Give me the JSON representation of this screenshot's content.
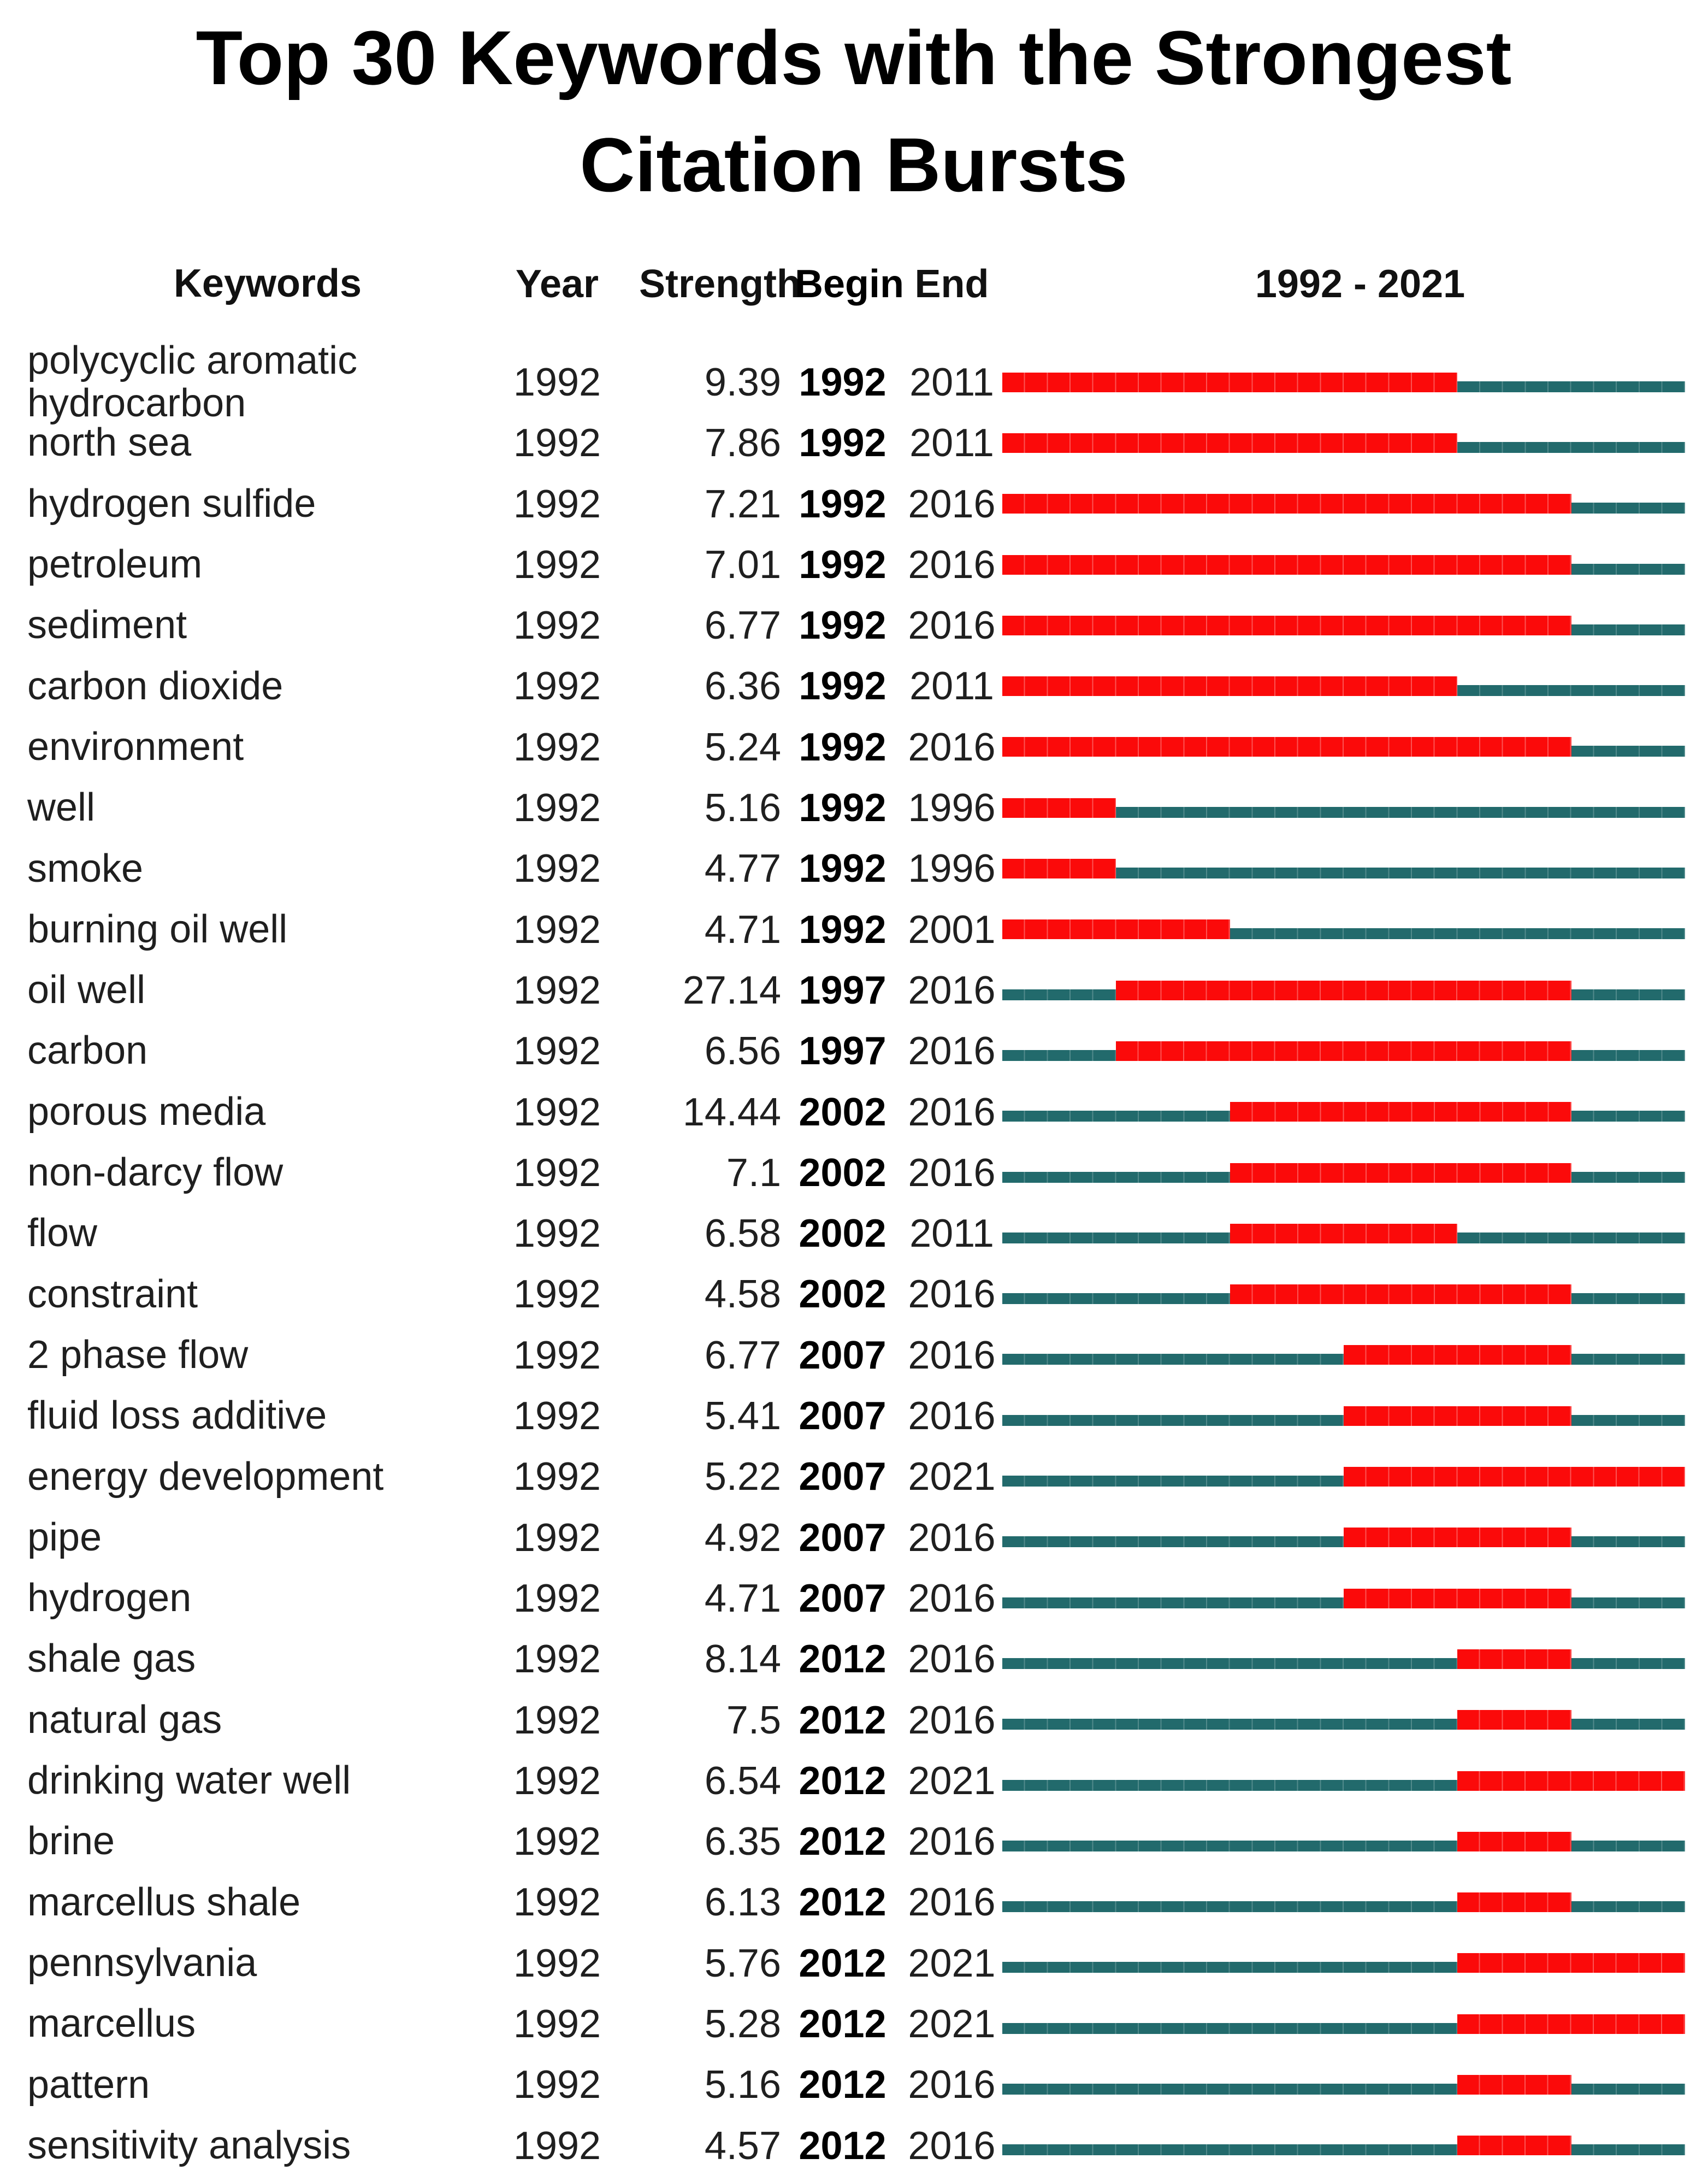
{
  "title": "Top 30 Keywords with the Strongest Citation Bursts",
  "headers": {
    "keywords": "Keywords",
    "year": "Year",
    "strength": "Strength",
    "begin": "Begin",
    "end": "End",
    "range": "1992 - 2021"
  },
  "colors": {
    "burst": "#fb0a0a",
    "track": "#226a6c",
    "text": "#1f1f1f",
    "title": "#000000"
  },
  "chart_data": {
    "type": "table",
    "title": "Top 30 Keywords with the Strongest Citation Bursts",
    "timeline": {
      "start": 1992,
      "end": 2021,
      "label": "1992 - 2021"
    },
    "columns": [
      "Keywords",
      "Year",
      "Strength",
      "Begin",
      "End"
    ],
    "legend": {
      "burst_segment": "burst period (red)",
      "track_segment": "non-burst timeline (teal)"
    },
    "rows": [
      {
        "keyword": "polycyclic aromatic hydrocarbon",
        "year": "1992",
        "strength": "9.39",
        "begin": 1992,
        "end": 2011
      },
      {
        "keyword": "north sea",
        "year": "1992",
        "strength": "7.86",
        "begin": 1992,
        "end": 2011
      },
      {
        "keyword": "hydrogen sulfide",
        "year": "1992",
        "strength": "7.21",
        "begin": 1992,
        "end": 2016
      },
      {
        "keyword": "petroleum",
        "year": "1992",
        "strength": "7.01",
        "begin": 1992,
        "end": 2016
      },
      {
        "keyword": "sediment",
        "year": "1992",
        "strength": "6.77",
        "begin": 1992,
        "end": 2016
      },
      {
        "keyword": "carbon dioxide",
        "year": "1992",
        "strength": "6.36",
        "begin": 1992,
        "end": 2011
      },
      {
        "keyword": "environment",
        "year": "1992",
        "strength": "5.24",
        "begin": 1992,
        "end": 2016
      },
      {
        "keyword": "well",
        "year": "1992",
        "strength": "5.16",
        "begin": 1992,
        "end": 1996
      },
      {
        "keyword": "smoke",
        "year": "1992",
        "strength": "4.77",
        "begin": 1992,
        "end": 1996
      },
      {
        "keyword": "burning oil well",
        "year": "1992",
        "strength": "4.71",
        "begin": 1992,
        "end": 2001
      },
      {
        "keyword": "oil well",
        "year": "1992",
        "strength": "27.14",
        "begin": 1997,
        "end": 2016
      },
      {
        "keyword": "carbon",
        "year": "1992",
        "strength": "6.56",
        "begin": 1997,
        "end": 2016
      },
      {
        "keyword": "porous media",
        "year": "1992",
        "strength": "14.44",
        "begin": 2002,
        "end": 2016
      },
      {
        "keyword": "non-darcy flow",
        "year": "1992",
        "strength": "7.1",
        "begin": 2002,
        "end": 2016
      },
      {
        "keyword": "flow",
        "year": "1992",
        "strength": "6.58",
        "begin": 2002,
        "end": 2011
      },
      {
        "keyword": "constraint",
        "year": "1992",
        "strength": "4.58",
        "begin": 2002,
        "end": 2016
      },
      {
        "keyword": "2 phase flow",
        "year": "1992",
        "strength": "6.77",
        "begin": 2007,
        "end": 2016
      },
      {
        "keyword": "fluid loss additive",
        "year": "1992",
        "strength": "5.41",
        "begin": 2007,
        "end": 2016
      },
      {
        "keyword": "energy development",
        "year": "1992",
        "strength": "5.22",
        "begin": 2007,
        "end": 2021
      },
      {
        "keyword": "pipe",
        "year": "1992",
        "strength": "4.92",
        "begin": 2007,
        "end": 2016
      },
      {
        "keyword": "hydrogen",
        "year": "1992",
        "strength": "4.71",
        "begin": 2007,
        "end": 2016
      },
      {
        "keyword": "shale gas",
        "year": "1992",
        "strength": "8.14",
        "begin": 2012,
        "end": 2016
      },
      {
        "keyword": "natural gas",
        "year": "1992",
        "strength": "7.5",
        "begin": 2012,
        "end": 2016
      },
      {
        "keyword": "drinking water well",
        "year": "1992",
        "strength": "6.54",
        "begin": 2012,
        "end": 2021
      },
      {
        "keyword": "brine",
        "year": "1992",
        "strength": "6.35",
        "begin": 2012,
        "end": 2016
      },
      {
        "keyword": "marcellus shale",
        "year": "1992",
        "strength": "6.13",
        "begin": 2012,
        "end": 2016
      },
      {
        "keyword": "pennsylvania",
        "year": "1992",
        "strength": "5.76",
        "begin": 2012,
        "end": 2021
      },
      {
        "keyword": "marcellus",
        "year": "1992",
        "strength": "5.28",
        "begin": 2012,
        "end": 2021
      },
      {
        "keyword": "pattern",
        "year": "1992",
        "strength": "5.16",
        "begin": 2012,
        "end": 2016
      },
      {
        "keyword": "sensitivity analysis",
        "year": "1992",
        "strength": "4.57",
        "begin": 2012,
        "end": 2016
      }
    ]
  }
}
